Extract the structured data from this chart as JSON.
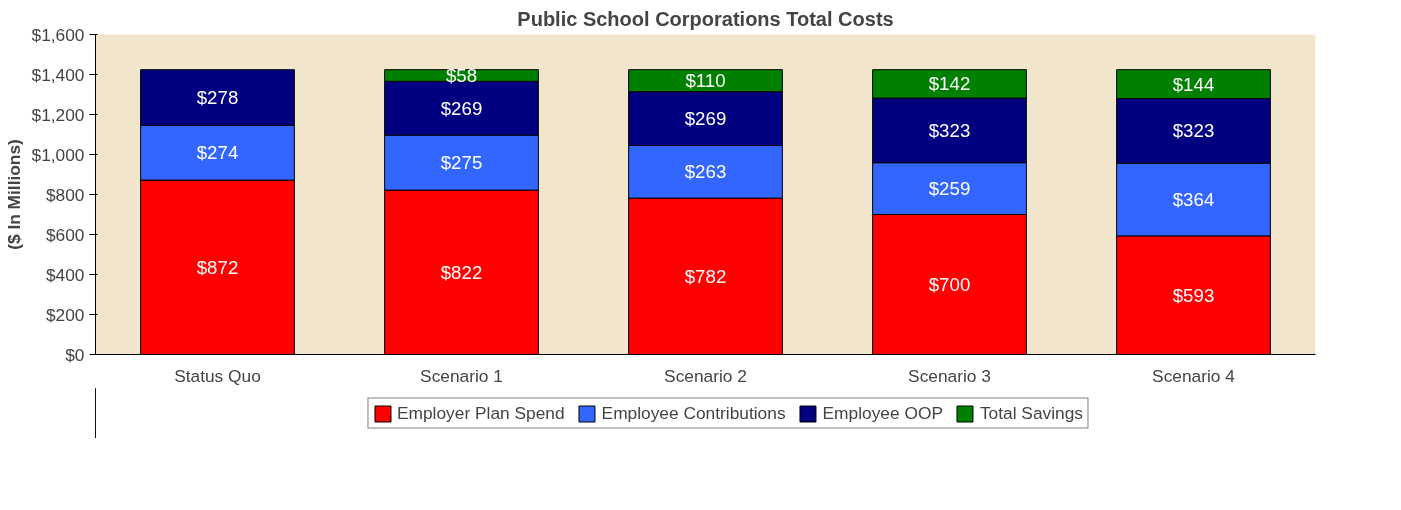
{
  "chart_data": {
    "type": "bar",
    "title": "Public School Corporations Total Costs",
    "ylabel": "($ In Millions)",
    "categories": [
      "Status Quo",
      "Scenario 1",
      "Scenario 2",
      "Scenario 3",
      "Scenario 4"
    ],
    "stacked": true,
    "series": [
      {
        "name": "Employer Plan Spend",
        "color": "#ff0000",
        "values": [
          872,
          822,
          782,
          700,
          593
        ],
        "value_labels": [
          "$872",
          "$822",
          "$782",
          "$700",
          "$593"
        ]
      },
      {
        "name": "Employee Contributions",
        "color": "#3366ff",
        "values": [
          274,
          275,
          263,
          259,
          364
        ],
        "value_labels": [
          "$274",
          "$275",
          "$263",
          "$259",
          "$364"
        ]
      },
      {
        "name": "Employee OOP",
        "color": "#000080",
        "values": [
          278,
          269,
          269,
          323,
          323
        ],
        "value_labels": [
          "$278",
          "$269",
          "$269",
          "$323",
          "$323"
        ]
      },
      {
        "name": "Total Savings",
        "color": "#008000",
        "values": [
          null,
          58,
          110,
          142,
          144
        ],
        "value_labels": [
          null,
          "$58",
          "$110",
          "$142",
          "$144"
        ]
      }
    ],
    "ylim": [
      0,
      1600
    ],
    "yticks": [
      {
        "value": 0,
        "label": "$0"
      },
      {
        "value": 200,
        "label": "$200"
      },
      {
        "value": 400,
        "label": "$400"
      },
      {
        "value": 600,
        "label": "$600"
      },
      {
        "value": 800,
        "label": "$800"
      },
      {
        "value": 1000,
        "label": "$1,000"
      },
      {
        "value": 1200,
        "label": "$1,200"
      },
      {
        "value": 1400,
        "label": "$1,400"
      },
      {
        "value": 1600,
        "label": "$1,600"
      }
    ],
    "grid": false,
    "legend": "bottom"
  }
}
